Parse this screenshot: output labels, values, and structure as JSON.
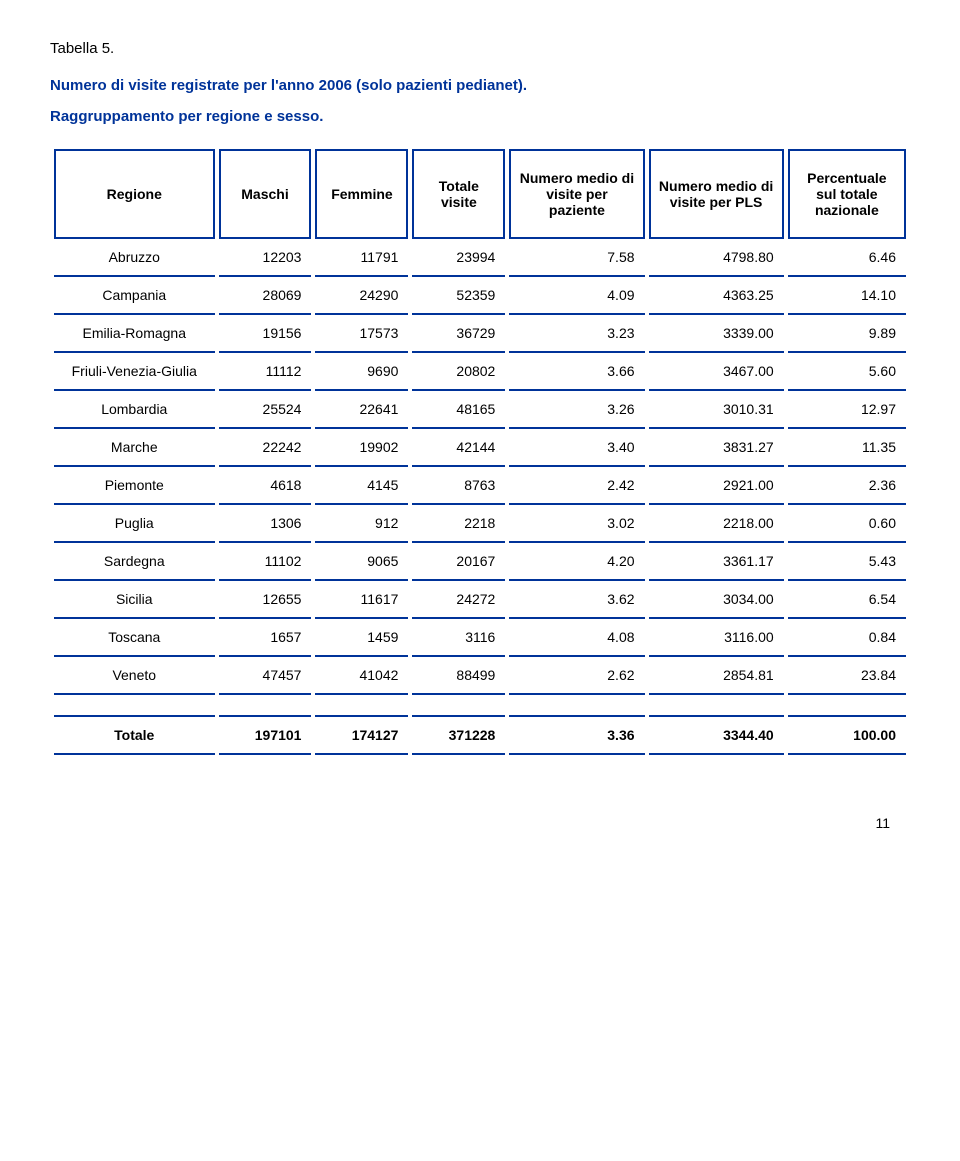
{
  "table_label": "Tabella 5.",
  "title": "Numero di visite registrate per l'anno 2006 (solo pazienti pedianet).",
  "subtitle": "Raggruppamento per regione e sesso.",
  "columns": [
    "Regione",
    "Maschi",
    "Femmine",
    "Totale visite",
    "Numero medio di visite per paziente",
    "Numero medio di visite per PLS",
    "Percentuale sul totale nazionale"
  ],
  "col_widths_pct": [
    19,
    11,
    11,
    11,
    16,
    16,
    14
  ],
  "rows": [
    {
      "region": "Abruzzo",
      "maschi": "12203",
      "femmine": "11791",
      "totale": "23994",
      "m_paziente": "7.58",
      "m_pls": "4798.80",
      "perc": "6.46"
    },
    {
      "region": "Campania",
      "maschi": "28069",
      "femmine": "24290",
      "totale": "52359",
      "m_paziente": "4.09",
      "m_pls": "4363.25",
      "perc": "14.10"
    },
    {
      "region": "Emilia-Romagna",
      "maschi": "19156",
      "femmine": "17573",
      "totale": "36729",
      "m_paziente": "3.23",
      "m_pls": "3339.00",
      "perc": "9.89"
    },
    {
      "region": "Friuli-Venezia-Giulia",
      "maschi": "11112",
      "femmine": "9690",
      "totale": "20802",
      "m_paziente": "3.66",
      "m_pls": "3467.00",
      "perc": "5.60"
    },
    {
      "region": "Lombardia",
      "maschi": "25524",
      "femmine": "22641",
      "totale": "48165",
      "m_paziente": "3.26",
      "m_pls": "3010.31",
      "perc": "12.97"
    },
    {
      "region": "Marche",
      "maschi": "22242",
      "femmine": "19902",
      "totale": "42144",
      "m_paziente": "3.40",
      "m_pls": "3831.27",
      "perc": "11.35"
    },
    {
      "region": "Piemonte",
      "maschi": "4618",
      "femmine": "4145",
      "totale": "8763",
      "m_paziente": "2.42",
      "m_pls": "2921.00",
      "perc": "2.36"
    },
    {
      "region": "Puglia",
      "maschi": "1306",
      "femmine": "912",
      "totale": "2218",
      "m_paziente": "3.02",
      "m_pls": "2218.00",
      "perc": "0.60"
    },
    {
      "region": "Sardegna",
      "maschi": "11102",
      "femmine": "9065",
      "totale": "20167",
      "m_paziente": "4.20",
      "m_pls": "3361.17",
      "perc": "5.43"
    },
    {
      "region": "Sicilia",
      "maschi": "12655",
      "femmine": "11617",
      "totale": "24272",
      "m_paziente": "3.62",
      "m_pls": "3034.00",
      "perc": "6.54"
    },
    {
      "region": "Toscana",
      "maschi": "1657",
      "femmine": "1459",
      "totale": "3116",
      "m_paziente": "4.08",
      "m_pls": "3116.00",
      "perc": "0.84"
    },
    {
      "region": "Veneto",
      "maschi": "47457",
      "femmine": "41042",
      "totale": "88499",
      "m_paziente": "2.62",
      "m_pls": "2854.81",
      "perc": "23.84"
    }
  ],
  "total": {
    "region": "Totale",
    "maschi": "197101",
    "femmine": "174127",
    "totale": "371228",
    "m_paziente": "3.36",
    "m_pls": "3344.40",
    "perc": "100.00"
  },
  "page_number": "11",
  "colors": {
    "border": "#003399",
    "title_text": "#003399",
    "body_text": "#000000",
    "background": "#ffffff"
  },
  "typography": {
    "family": "Arial",
    "body_size_pt": 11,
    "title_size_pt": 11,
    "title_weight": "bold"
  }
}
